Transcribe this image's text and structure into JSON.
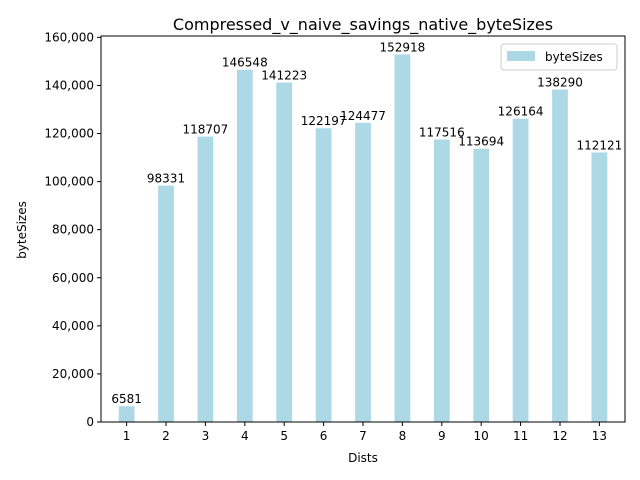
{
  "chart_data": {
    "type": "bar",
    "title": "Compressed_v_naive_savings_native_byteSizes",
    "xlabel": "Dists",
    "ylabel": "byteSizes",
    "categories": [
      "1",
      "2",
      "3",
      "4",
      "5",
      "6",
      "7",
      "8",
      "9",
      "10",
      "11",
      "12",
      "13"
    ],
    "series": [
      {
        "name": "byteSizes",
        "values": [
          6581,
          98331,
          118707,
          146548,
          141223,
          122197,
          124477,
          152918,
          117516,
          113694,
          126164,
          138290,
          112121
        ]
      }
    ],
    "data_labels": [
      "6581",
      "98331",
      "118707",
      "146548",
      "141223",
      "122197",
      "124477",
      "152918",
      "117516",
      "113694",
      "126164",
      "138290",
      "112121"
    ],
    "yticks": [
      0,
      20000,
      40000,
      60000,
      80000,
      100000,
      120000,
      140000,
      160000
    ],
    "ytick_labels": [
      "0",
      "20,000",
      "40,000",
      "60,000",
      "80,000",
      "100,000",
      "120,000",
      "140,000",
      "160,000"
    ],
    "ylim": [
      0,
      160566
    ],
    "grid": false,
    "legend_position": "top-right",
    "colors": {
      "bar": "#add8e6",
      "axis": "#000000",
      "legend_border": "#cccccc"
    }
  }
}
